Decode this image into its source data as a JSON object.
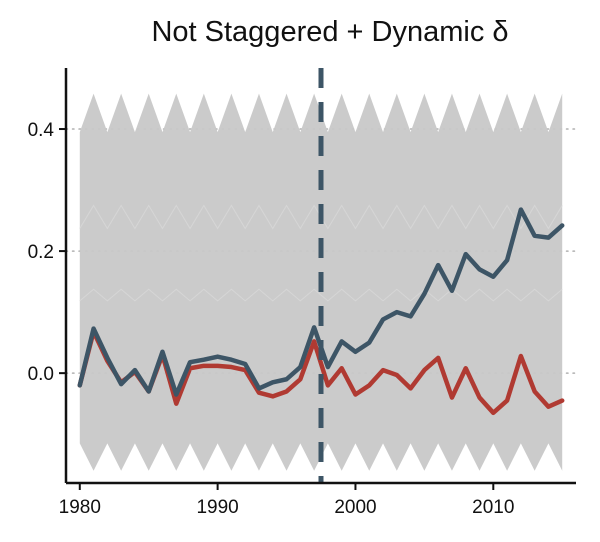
{
  "chart_data": {
    "type": "line",
    "title": "Not Staggered + Dynamic δ",
    "xlabel": "",
    "ylabel": "",
    "xlim": [
      1979,
      2016
    ],
    "ylim": [
      -0.18,
      0.5
    ],
    "x_ticks": [
      1980,
      1990,
      2000,
      2010
    ],
    "x_tick_labels": [
      "1980",
      "1990",
      "2000",
      "2010"
    ],
    "y_ticks": [
      0.0,
      0.2,
      0.4
    ],
    "y_tick_labels": [
      "0.0",
      "0.2",
      "0.4"
    ],
    "grid": "horizontal dotted",
    "legend": "none",
    "treatment_year": 1997.5,
    "x": [
      1980,
      1981,
      1982,
      1983,
      1984,
      1985,
      1986,
      1987,
      1988,
      1989,
      1990,
      1991,
      1992,
      1993,
      1994,
      1995,
      1996,
      1997,
      1998,
      1999,
      2000,
      2001,
      2002,
      2003,
      2004,
      2005,
      2006,
      2007,
      2008,
      2009,
      2010,
      2011,
      2012,
      2013,
      2014,
      2015
    ],
    "series": [
      {
        "color": "#3d5566",
        "values": [
          -0.02,
          0.073,
          0.025,
          -0.018,
          0.005,
          -0.03,
          0.035,
          -0.035,
          0.018,
          0.022,
          0.027,
          0.022,
          0.015,
          -0.025,
          -0.015,
          -0.01,
          0.01,
          0.075,
          0.01,
          0.052,
          0.035,
          0.05,
          0.088,
          0.1,
          0.093,
          0.13,
          0.177,
          0.135,
          0.195,
          0.17,
          0.158,
          0.185,
          0.268,
          0.225,
          0.222,
          0.242
        ]
      },
      {
        "color": "#b03a32",
        "values": [
          -0.02,
          0.068,
          0.02,
          -0.015,
          0.002,
          -0.03,
          0.03,
          -0.05,
          0.008,
          0.012,
          0.012,
          0.01,
          0.005,
          -0.032,
          -0.038,
          -0.03,
          -0.01,
          0.052,
          -0.02,
          0.008,
          -0.035,
          -0.02,
          0.005,
          -0.003,
          -0.025,
          0.005,
          0.025,
          -0.04,
          0.008,
          -0.04,
          -0.065,
          -0.045,
          0.028,
          -0.03,
          -0.055,
          -0.045
        ]
      }
    ],
    "placebo_band": {
      "color": "#c8c8c8",
      "upper_even": 0.395,
      "upper_odd": 0.458,
      "lower_even": -0.115,
      "lower_odd": -0.16
    }
  }
}
